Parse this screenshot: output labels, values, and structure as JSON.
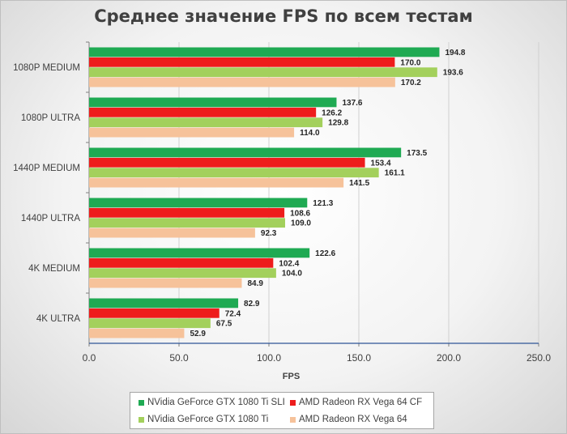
{
  "title": "Среднее значение FPS по всем тестам",
  "chart_data": {
    "type": "bar",
    "orientation": "horizontal",
    "title": "Среднее значение FPS по всем тестам",
    "xlabel": "FPS",
    "ylabel": "",
    "xlim": [
      0,
      250
    ],
    "x_ticks": [
      "0.0",
      "50.0",
      "100.0",
      "150.0",
      "200.0",
      "250.0"
    ],
    "categories": [
      "1080P MEDIUM",
      "1080P ULTRA",
      "1440P MEDIUM",
      "1440P ULTRA",
      "4K MEDIUM",
      "4K ULTRA"
    ],
    "series": [
      {
        "name": "NVidia GeForce GTX 1080 Ti SLI",
        "color": "#1faa53",
        "values": [
          194.8,
          137.6,
          173.5,
          121.3,
          122.6,
          82.9
        ],
        "labels": [
          "194.8",
          "137.6",
          "173.5",
          "121.3",
          "122.6",
          "82.9"
        ]
      },
      {
        "name": "AMD Radeon RX Vega 64 CF",
        "color": "#ee1c1c",
        "values": [
          170.0,
          126.2,
          153.4,
          108.6,
          102.4,
          72.4
        ],
        "labels": [
          "170.0",
          "126.2",
          "153.4",
          "108.6",
          "102.4",
          "72.4"
        ]
      },
      {
        "name": "NVidia GeForce GTX 1080 Ti",
        "color": "#a3d05c",
        "values": [
          193.6,
          129.8,
          161.1,
          109.0,
          104.0,
          67.5
        ],
        "labels": [
          "193.6",
          "129.8",
          "161.1",
          "109.0",
          "104.0",
          "67.5"
        ]
      },
      {
        "name": "AMD Radeon RX Vega 64",
        "color": "#f6c29a",
        "values": [
          170.2,
          114.0,
          141.5,
          92.3,
          84.9,
          52.9
        ],
        "labels": [
          "170.2",
          "114.0",
          "141.5",
          "92.3",
          "84.9",
          "52.9"
        ]
      }
    ],
    "grid": true,
    "legend_position": "bottom"
  }
}
